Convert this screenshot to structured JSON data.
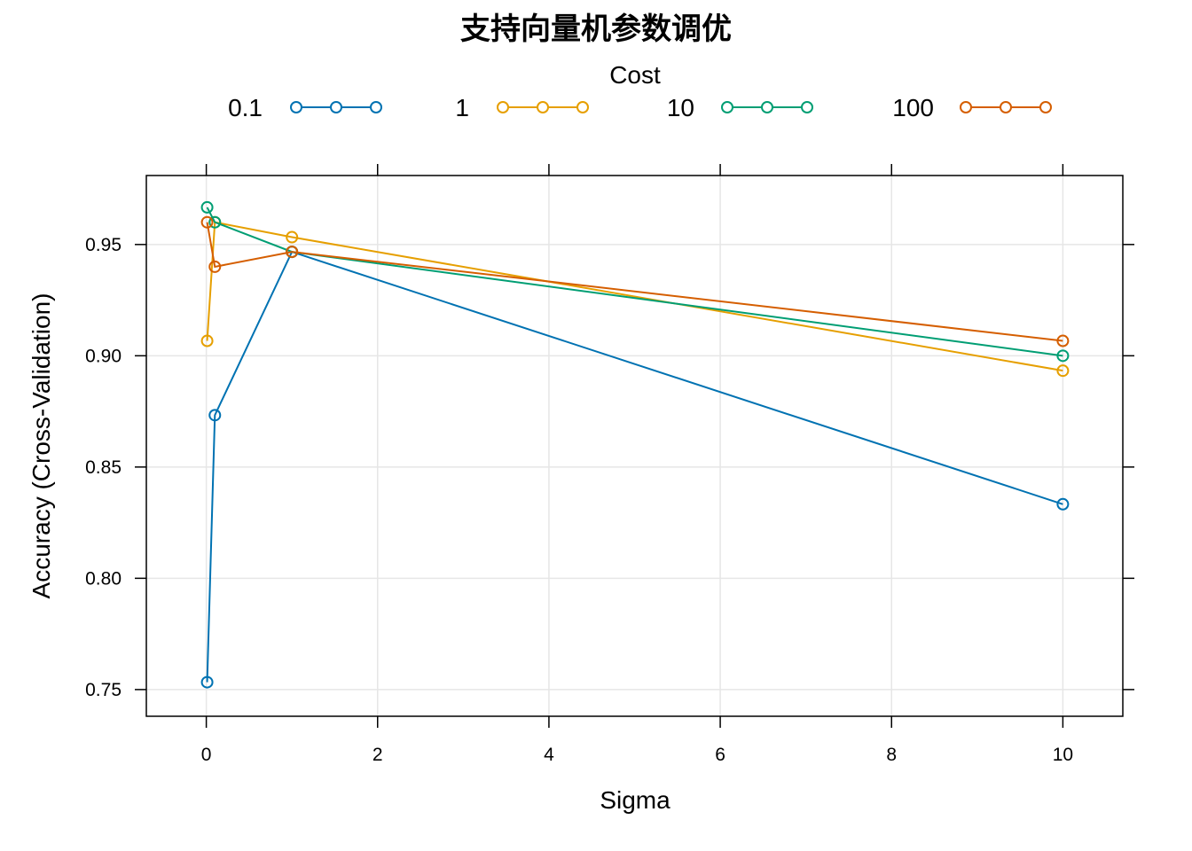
{
  "chart_data": {
    "type": "line",
    "title": "支持向量机参数调优",
    "xlabel": "Sigma",
    "ylabel": "Accuracy (Cross-Validation)",
    "xlim": [
      -0.7,
      10.7
    ],
    "ylim": [
      0.738,
      0.981
    ],
    "x_ticks": [
      0,
      2,
      4,
      6,
      8,
      10
    ],
    "y_ticks": [
      0.75,
      0.8,
      0.85,
      0.9,
      0.95
    ],
    "y_tick_labels": [
      "0.75",
      "0.80",
      "0.85",
      "0.90",
      "0.95"
    ],
    "grid": true,
    "legend": {
      "title": "Cost",
      "position": "top"
    },
    "x": [
      0.01,
      0.1,
      1,
      10
    ],
    "series": [
      {
        "name": "0.1",
        "color": "#0072B2",
        "values": [
          0.7533,
          0.8733,
          0.9467,
          0.8333
        ]
      },
      {
        "name": "1",
        "color": "#E69F00",
        "values": [
          0.9067,
          0.96,
          0.9533,
          0.8933
        ]
      },
      {
        "name": "10",
        "color": "#009E73",
        "values": [
          0.9667,
          0.96,
          0.9467,
          0.9
        ]
      },
      {
        "name": "100",
        "color": "#D55E00",
        "values": [
          0.96,
          0.94,
          0.9467,
          0.9067
        ]
      }
    ]
  }
}
